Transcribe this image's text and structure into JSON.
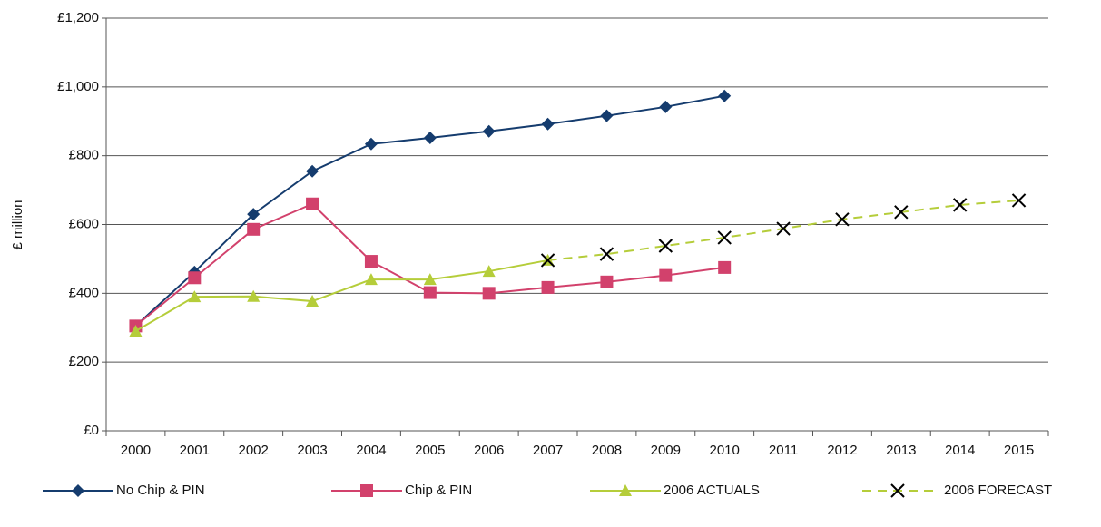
{
  "chart_data": {
    "type": "line",
    "y_label": "£ million",
    "categories": [
      "2000",
      "2001",
      "2002",
      "2003",
      "2004",
      "2005",
      "2006",
      "2007",
      "2008",
      "2009",
      "2010",
      "2011",
      "2012",
      "2013",
      "2014",
      "2015"
    ],
    "series": [
      {
        "name": "No Chip & PIN",
        "color": "#153c6e",
        "marker": "diamond",
        "dashed": false,
        "values": [
          305,
          462,
          630,
          755,
          834,
          852,
          871,
          892,
          916,
          942,
          974,
          null,
          null,
          null,
          null,
          null
        ]
      },
      {
        "name": "Chip & PIN",
        "color": "#d2416c",
        "marker": "square",
        "dashed": false,
        "values": [
          305,
          445,
          586,
          660,
          493,
          402,
          400,
          417,
          433,
          452,
          475,
          null,
          null,
          null,
          null,
          null
        ]
      },
      {
        "name": "2006 ACTUALS",
        "color": "#b5cd3a",
        "marker": "triangle",
        "dashed": false,
        "values": [
          290,
          390,
          391,
          377,
          440,
          440,
          464,
          496,
          null,
          null,
          null,
          null,
          null,
          null,
          null,
          null
        ]
      },
      {
        "name": "2006 FORECAST",
        "color": "#b5cd3a",
        "marker": "x",
        "marker_color": "#000000",
        "dashed": true,
        "values": [
          null,
          null,
          null,
          null,
          null,
          null,
          null,
          496,
          514,
          538,
          562,
          588,
          615,
          636,
          657,
          670
        ]
      }
    ],
    "ylim": [
      0,
      1200
    ],
    "yticks": [
      {
        "value": 0,
        "label": "£0"
      },
      {
        "value": 200,
        "label": "£200"
      },
      {
        "value": 400,
        "label": "£400"
      },
      {
        "value": 600,
        "label": "£600"
      },
      {
        "value": 800,
        "label": "£800"
      },
      {
        "value": 1000,
        "label": "£1,000"
      },
      {
        "value": 1200,
        "label": "£1,200"
      }
    ],
    "grid": true,
    "legend": "bottom"
  }
}
